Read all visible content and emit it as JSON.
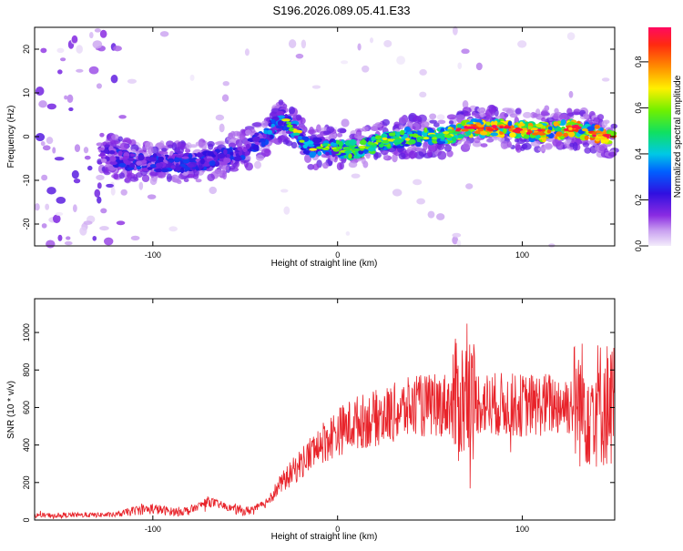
{
  "title": "S196.2026.089.05.41.E33",
  "colors": {
    "snr_line": "#e8232a",
    "axis": "#000000",
    "background": "#ffffff"
  },
  "chart_data": [
    {
      "type": "heatmap",
      "xlabel": "Height of straight line (km)",
      "ylabel": "Frequency (Hz)",
      "xlim": [
        -164,
        150
      ],
      "ylim": [
        -25,
        25
      ],
      "xticks": [
        -100,
        0,
        100
      ],
      "yticks": [
        -20,
        -10,
        0,
        10,
        20
      ],
      "ridge": [
        {
          "x": -125,
          "y": -4
        },
        {
          "x": -110,
          "y": -6
        },
        {
          "x": -95,
          "y": -6
        },
        {
          "x": -80,
          "y": -6
        },
        {
          "x": -65,
          "y": -5
        },
        {
          "x": -50,
          "y": -3
        },
        {
          "x": -40,
          "y": 0
        },
        {
          "x": -30,
          "y": 4
        },
        {
          "x": -22,
          "y": 1
        },
        {
          "x": -15,
          "y": -3
        },
        {
          "x": -8,
          "y": -2
        },
        {
          "x": 0,
          "y": -3
        },
        {
          "x": 10,
          "y": -3
        },
        {
          "x": 25,
          "y": -1
        },
        {
          "x": 40,
          "y": 0
        },
        {
          "x": 55,
          "y": 0
        },
        {
          "x": 65,
          "y": 1
        },
        {
          "x": 70,
          "y": 2
        },
        {
          "x": 90,
          "y": 2
        },
        {
          "x": 110,
          "y": 1
        },
        {
          "x": 130,
          "y": 2
        },
        {
          "x": 145,
          "y": 0
        }
      ],
      "colorbar": {
        "label": "Normalized spectral amplitude",
        "range": [
          0,
          0.95
        ],
        "ticks": [
          0.0,
          0.2,
          0.4,
          0.6,
          0.8
        ]
      }
    },
    {
      "type": "line",
      "xlabel": "Height of straight line (km)",
      "ylabel": "SNR (10 * v/v)",
      "xlim": [
        -164,
        150
      ],
      "ylim": [
        0,
        1180
      ],
      "xticks": [
        -100,
        0,
        100
      ],
      "yticks": [
        0,
        200,
        400,
        600,
        800,
        1000
      ],
      "trend": [
        {
          "x": -164,
          "y": 25
        },
        {
          "x": -120,
          "y": 28
        },
        {
          "x": -110,
          "y": 50
        },
        {
          "x": -100,
          "y": 60
        },
        {
          "x": -90,
          "y": 45
        },
        {
          "x": -80,
          "y": 50
        },
        {
          "x": -70,
          "y": 100
        },
        {
          "x": -60,
          "y": 70
        },
        {
          "x": -50,
          "y": 45
        },
        {
          "x": -40,
          "y": 80
        },
        {
          "x": -30,
          "y": 200
        },
        {
          "x": -20,
          "y": 300
        },
        {
          "x": -10,
          "y": 400
        },
        {
          "x": 0,
          "y": 470
        },
        {
          "x": 10,
          "y": 520
        },
        {
          "x": 20,
          "y": 540
        },
        {
          "x": 40,
          "y": 600
        },
        {
          "x": 60,
          "y": 620
        },
        {
          "x": 70,
          "y": 650
        },
        {
          "x": 80,
          "y": 620
        },
        {
          "x": 100,
          "y": 610
        },
        {
          "x": 120,
          "y": 620
        },
        {
          "x": 150,
          "y": 620
        }
      ]
    }
  ]
}
